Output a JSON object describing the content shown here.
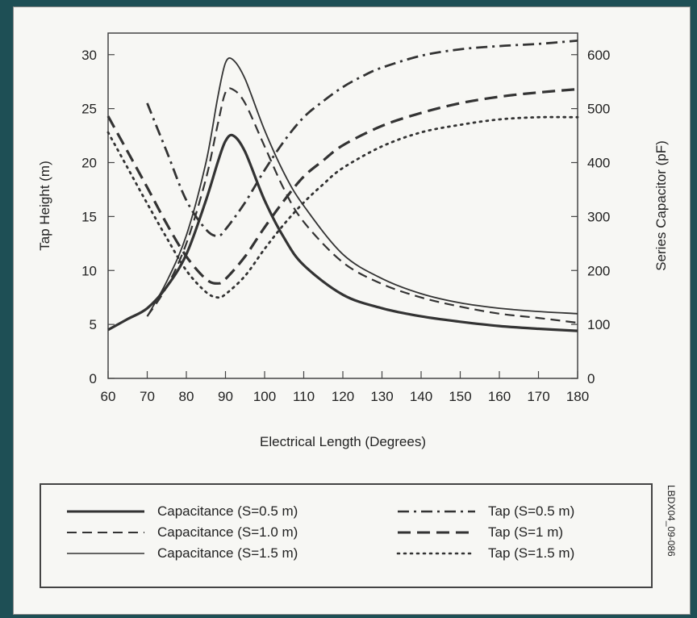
{
  "figure_id": "LBDX04_09-086",
  "colors": {
    "line": "#333333",
    "background": "#f7f7f4",
    "frame": "#1e4f55"
  },
  "chart_data": {
    "type": "line",
    "title": "",
    "xlabel": "Electrical Length (Degrees)",
    "ylabel": "Tap Height (m)",
    "y2label": "Series Capacitor (pF)",
    "xlim": [
      60,
      180
    ],
    "ylim": [
      0,
      32
    ],
    "y2lim": [
      0,
      640
    ],
    "xticks": [
      60,
      70,
      80,
      90,
      100,
      110,
      120,
      130,
      140,
      150,
      160,
      170,
      180
    ],
    "yticks": [
      0,
      5,
      10,
      15,
      20,
      25,
      30
    ],
    "y2ticks": [
      0,
      100,
      200,
      300,
      400,
      500,
      600
    ],
    "grid": false,
    "legend_position": "bottom",
    "series": [
      {
        "name": "Capacitance (S=0.5 m)",
        "axis": "right",
        "style": "solid-thick",
        "x": [
          60,
          65,
          70,
          75,
          80,
          85,
          88,
          90,
          92,
          95,
          100,
          105,
          110,
          120,
          130,
          140,
          150,
          160,
          170,
          180
        ],
        "y": [
          90,
          110,
          130,
          170,
          230,
          330,
          400,
          440,
          450,
          420,
          330,
          260,
          210,
          155,
          130,
          115,
          105,
          97,
          92,
          88
        ]
      },
      {
        "name": "Capacitance (S=1.0 m)",
        "axis": "right",
        "style": "dashed",
        "x": [
          70,
          75,
          80,
          85,
          88,
          90,
          92,
          95,
          100,
          105,
          110,
          120,
          130,
          140,
          150,
          160,
          170,
          180
        ],
        "y": [
          115,
          170,
          250,
          370,
          470,
          530,
          535,
          510,
          430,
          350,
          290,
          215,
          175,
          150,
          133,
          120,
          112,
          103
        ]
      },
      {
        "name": "Capacitance (S=1.5 m)",
        "axis": "right",
        "style": "solid-thin",
        "x": [
          70,
          75,
          80,
          85,
          88,
          90,
          92,
          95,
          100,
          105,
          110,
          120,
          130,
          140,
          150,
          160,
          170,
          180
        ],
        "y": [
          115,
          180,
          265,
          400,
          520,
          585,
          590,
          555,
          460,
          380,
          320,
          230,
          185,
          157,
          140,
          130,
          124,
          120
        ]
      },
      {
        "name": "Tap (S=0.5 m)",
        "axis": "left",
        "style": "dashdot",
        "x": [
          70,
          75,
          80,
          85,
          88,
          90,
          95,
          100,
          105,
          110,
          115,
          120,
          125,
          130,
          140,
          150,
          160,
          170,
          180
        ],
        "y": [
          25.5,
          21.0,
          16.5,
          13.8,
          13.2,
          13.8,
          16.3,
          19.3,
          22.0,
          24.2,
          25.7,
          27.0,
          28.0,
          28.8,
          29.9,
          30.5,
          30.8,
          31.0,
          31.3
        ]
      },
      {
        "name": "Tap (S=1 m)",
        "axis": "left",
        "style": "dashed-long",
        "x": [
          60,
          65,
          70,
          75,
          80,
          85,
          88,
          90,
          95,
          100,
          105,
          110,
          115,
          120,
          130,
          140,
          150,
          160,
          170,
          180
        ],
        "y": [
          24.3,
          21.0,
          17.7,
          14.3,
          11.3,
          9.2,
          8.8,
          9.2,
          11.3,
          14.0,
          16.5,
          18.7,
          20.2,
          21.6,
          23.4,
          24.6,
          25.5,
          26.1,
          26.5,
          26.8
        ]
      },
      {
        "name": "Tap (S=1.5 m)",
        "axis": "left",
        "style": "dotted",
        "x": [
          60,
          65,
          70,
          75,
          80,
          85,
          88,
          90,
          95,
          100,
          105,
          110,
          115,
          120,
          130,
          140,
          150,
          160,
          170,
          180
        ],
        "y": [
          22.8,
          19.5,
          16.2,
          13.0,
          10.0,
          8.0,
          7.5,
          7.8,
          9.5,
          12.0,
          14.3,
          16.3,
          18.0,
          19.5,
          21.5,
          22.8,
          23.5,
          24.0,
          24.2,
          24.2
        ]
      }
    ]
  }
}
